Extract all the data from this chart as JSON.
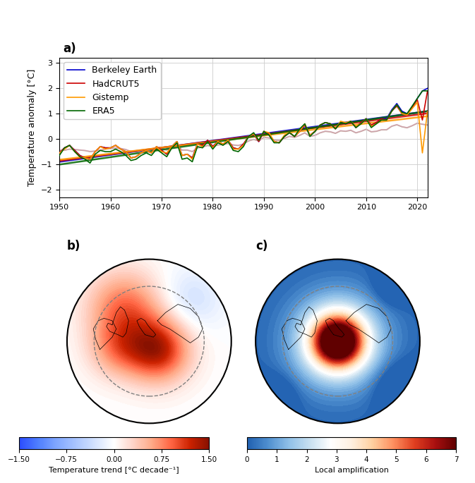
{
  "title_a": "a)",
  "title_b": "b)",
  "title_c": "c)",
  "ylabel_a": "Temperature anomaly [°C]",
  "xlabel_a": "",
  "xlim_a": [
    1950,
    2022
  ],
  "ylim_a": [
    -2.3,
    3.2
  ],
  "yticks_a": [
    -2,
    -1,
    0,
    1,
    2,
    3
  ],
  "xticks_a": [
    1950,
    1960,
    1970,
    1980,
    1990,
    2000,
    2010,
    2020
  ],
  "legend_labels": [
    "Berkeley Earth",
    "HadCRUT5",
    "Gistemp",
    "ERA5"
  ],
  "line_colors": [
    "#0000cc",
    "#cc0000",
    "#ff9900",
    "#006600"
  ],
  "trend_colors": [
    "#3333ff",
    "#ff3333",
    "#ffaa00",
    "#009900"
  ],
  "smooth_colors": [
    "#c8b4a0",
    "#d4b4c0"
  ],
  "colorbar_b_label": "Temperature trend [°C decade⁻¹]",
  "colorbar_c_label": "Local amplification",
  "colorbar_b_ticks": [
    -1.5,
    -0.75,
    0.0,
    0.75,
    1.5
  ],
  "colorbar_c_ticks": [
    0,
    1,
    2,
    3,
    4,
    5,
    6,
    7
  ],
  "years": [
    1950,
    1951,
    1952,
    1953,
    1954,
    1955,
    1956,
    1957,
    1958,
    1959,
    1960,
    1961,
    1962,
    1963,
    1964,
    1965,
    1966,
    1967,
    1968,
    1969,
    1970,
    1971,
    1972,
    1973,
    1974,
    1975,
    1976,
    1977,
    1978,
    1979,
    1980,
    1981,
    1982,
    1983,
    1984,
    1985,
    1986,
    1987,
    1988,
    1989,
    1990,
    1991,
    1992,
    1993,
    1994,
    1995,
    1996,
    1997,
    1998,
    1999,
    2000,
    2001,
    2002,
    2003,
    2004,
    2005,
    2006,
    2007,
    2008,
    2009,
    2010,
    2011,
    2012,
    2013,
    2014,
    2015,
    2016,
    2017,
    2018,
    2019,
    2020,
    2021,
    2022
  ],
  "berkeley": [
    -0.55,
    -0.35,
    -0.25,
    -0.45,
    -0.65,
    -0.75,
    -0.8,
    -0.5,
    -0.3,
    -0.35,
    -0.35,
    -0.25,
    -0.4,
    -0.5,
    -0.75,
    -0.7,
    -0.55,
    -0.45,
    -0.55,
    -0.3,
    -0.45,
    -0.6,
    -0.3,
    -0.1,
    -0.65,
    -0.6,
    -0.75,
    -0.2,
    -0.25,
    -0.05,
    -0.3,
    -0.1,
    -0.2,
    -0.05,
    -0.35,
    -0.4,
    -0.2,
    0.1,
    0.2,
    -0.1,
    0.3,
    0.2,
    -0.1,
    -0.15,
    0.1,
    0.25,
    0.1,
    0.3,
    0.55,
    0.15,
    0.3,
    0.55,
    0.65,
    0.6,
    0.4,
    0.65,
    0.6,
    0.7,
    0.45,
    0.65,
    0.8,
    0.55,
    0.65,
    0.8,
    0.8,
    1.15,
    1.4,
    1.1,
    1.0,
    1.25,
    1.6,
    1.9,
    2.0
  ],
  "hadcrut5": [
    -0.55,
    -0.35,
    -0.25,
    -0.45,
    -0.65,
    -0.75,
    -0.8,
    -0.5,
    -0.3,
    -0.35,
    -0.35,
    -0.25,
    -0.4,
    -0.5,
    -0.75,
    -0.7,
    -0.55,
    -0.45,
    -0.55,
    -0.3,
    -0.45,
    -0.6,
    -0.3,
    -0.1,
    -0.65,
    -0.6,
    -0.75,
    -0.2,
    -0.25,
    -0.05,
    -0.3,
    -0.1,
    -0.2,
    -0.05,
    -0.35,
    -0.4,
    -0.2,
    0.1,
    0.2,
    -0.1,
    0.3,
    0.2,
    -0.1,
    -0.15,
    0.1,
    0.25,
    0.1,
    0.3,
    0.55,
    0.15,
    0.3,
    0.55,
    0.65,
    0.6,
    0.4,
    0.65,
    0.6,
    0.7,
    0.45,
    0.65,
    0.8,
    0.55,
    0.65,
    0.8,
    0.75,
    1.1,
    1.3,
    1.0,
    0.95,
    1.25,
    1.55,
    0.75,
    1.9
  ],
  "gistemp": [
    -0.55,
    -0.4,
    -0.25,
    -0.5,
    -0.7,
    -0.75,
    -0.8,
    -0.5,
    -0.3,
    -0.4,
    -0.35,
    -0.25,
    -0.4,
    -0.5,
    -0.75,
    -0.7,
    -0.55,
    -0.45,
    -0.55,
    -0.3,
    -0.5,
    -0.55,
    -0.3,
    -0.1,
    -0.65,
    -0.6,
    -0.8,
    -0.2,
    -0.3,
    -0.1,
    -0.35,
    -0.1,
    -0.2,
    -0.05,
    -0.4,
    -0.4,
    -0.25,
    0.1,
    0.2,
    -0.05,
    0.3,
    0.25,
    -0.1,
    -0.15,
    0.15,
    0.25,
    0.1,
    0.3,
    0.6,
    0.15,
    0.3,
    0.55,
    0.65,
    0.6,
    0.4,
    0.7,
    0.65,
    0.7,
    0.5,
    0.6,
    0.8,
    0.5,
    0.6,
    0.75,
    0.75,
    1.1,
    1.35,
    1.0,
    0.95,
    1.2,
    1.45,
    -0.55,
    1.1
  ],
  "era5": [
    -0.65,
    -0.35,
    -0.25,
    -0.5,
    -0.7,
    -0.8,
    -0.95,
    -0.6,
    -0.45,
    -0.5,
    -0.5,
    -0.4,
    -0.5,
    -0.65,
    -0.85,
    -0.8,
    -0.65,
    -0.55,
    -0.65,
    -0.4,
    -0.55,
    -0.7,
    -0.35,
    -0.15,
    -0.8,
    -0.75,
    -0.9,
    -0.3,
    -0.35,
    -0.1,
    -0.4,
    -0.15,
    -0.25,
    -0.1,
    -0.45,
    -0.5,
    -0.3,
    0.1,
    0.25,
    -0.05,
    0.3,
    0.15,
    -0.15,
    -0.15,
    0.1,
    0.25,
    0.1,
    0.4,
    0.6,
    0.1,
    0.3,
    0.55,
    0.65,
    0.6,
    0.4,
    0.65,
    0.6,
    0.7,
    0.45,
    0.6,
    0.8,
    0.45,
    0.6,
    0.75,
    0.75,
    1.1,
    1.35,
    1.05,
    1.0,
    1.3,
    1.6,
    1.9,
    1.9
  ],
  "smooth_global1": [
    -0.45,
    -0.45,
    -0.4,
    -0.42,
    -0.44,
    -0.46,
    -0.5,
    -0.48,
    -0.44,
    -0.4,
    -0.38,
    -0.36,
    -0.38,
    -0.42,
    -0.5,
    -0.5,
    -0.46,
    -0.42,
    -0.44,
    -0.38,
    -0.4,
    -0.44,
    -0.36,
    -0.28,
    -0.44,
    -0.44,
    -0.5,
    -0.36,
    -0.32,
    -0.26,
    -0.3,
    -0.24,
    -0.22,
    -0.18,
    -0.24,
    -0.26,
    -0.2,
    -0.08,
    -0.02,
    -0.08,
    0.06,
    0.04,
    -0.04,
    -0.06,
    0.02,
    0.1,
    0.06,
    0.14,
    0.24,
    0.1,
    0.14,
    0.24,
    0.3,
    0.28,
    0.22,
    0.32,
    0.3,
    0.34,
    0.24,
    0.3,
    0.38,
    0.28,
    0.3,
    0.36,
    0.36,
    0.5,
    0.56,
    0.48,
    0.44,
    0.52,
    0.62,
    0.58,
    0.55
  ],
  "smooth_global2": [
    -0.45,
    -0.44,
    -0.4,
    -0.41,
    -0.43,
    -0.45,
    -0.49,
    -0.47,
    -0.43,
    -0.39,
    -0.37,
    -0.35,
    -0.37,
    -0.41,
    -0.49,
    -0.49,
    -0.45,
    -0.41,
    -0.43,
    -0.37,
    -0.39,
    -0.43,
    -0.35,
    -0.27,
    -0.43,
    -0.43,
    -0.49,
    -0.35,
    -0.31,
    -0.25,
    -0.29,
    -0.23,
    -0.21,
    -0.17,
    -0.23,
    -0.25,
    -0.19,
    -0.07,
    -0.01,
    -0.07,
    0.07,
    0.05,
    -0.03,
    -0.05,
    0.03,
    0.11,
    0.07,
    0.15,
    0.25,
    0.11,
    0.15,
    0.25,
    0.31,
    0.29,
    0.23,
    0.33,
    0.31,
    0.35,
    0.25,
    0.31,
    0.39,
    0.29,
    0.31,
    0.37,
    0.37,
    0.51,
    0.57,
    0.49,
    0.45,
    0.53,
    0.63,
    0.59,
    0.55
  ],
  "background_color": "#ffffff",
  "grid_color": "#cccccc"
}
